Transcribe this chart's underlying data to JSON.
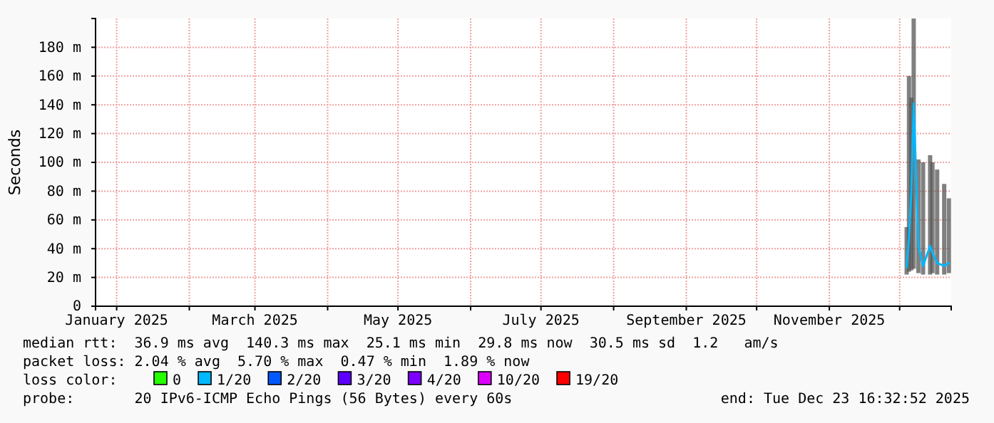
{
  "chart_data": {
    "type": "line",
    "ylabel": "Seconds",
    "xlim": [
      "2024-12-23",
      "2025-12-23"
    ],
    "xticks": [
      {
        "value": "2025-01-01",
        "label": "January 2025"
      },
      {
        "value": "2025-02-01",
        "label": null
      },
      {
        "value": "2025-03-01",
        "label": "March 2025"
      },
      {
        "value": "2025-04-01",
        "label": null
      },
      {
        "value": "2025-05-01",
        "label": "May 2025"
      },
      {
        "value": "2025-06-01",
        "label": null
      },
      {
        "value": "2025-07-01",
        "label": "July 2025"
      },
      {
        "value": "2025-08-01",
        "label": null
      },
      {
        "value": "2025-09-01",
        "label": "September 2025"
      },
      {
        "value": "2025-10-01",
        "label": null
      },
      {
        "value": "2025-11-01",
        "label": "November 2025"
      },
      {
        "value": "2025-12-01",
        "label": null
      }
    ],
    "ylim": [
      0,
      200
    ],
    "yticks": [
      0,
      {
        "value": 20,
        "label": "20 m"
      },
      {
        "value": 40,
        "label": "40 m"
      },
      {
        "value": 60,
        "label": "60 m"
      },
      {
        "value": 80,
        "label": "80 m"
      },
      {
        "value": 100,
        "label": "100 m"
      },
      {
        "value": 120,
        "label": "120 m"
      },
      {
        "value": 140,
        "label": "140 m"
      },
      {
        "value": 160,
        "label": "160 m"
      },
      {
        "value": 180,
        "label": "180 m"
      }
    ],
    "grid": true,
    "legend": "bottom",
    "legend_title": "loss color:",
    "line_style": "solid",
    "x": [
      "2025-12-04",
      "2025-12-05",
      "2025-12-06",
      "2025-12-07",
      "2025-12-09",
      "2025-12-11",
      "2025-12-14",
      "2025-12-15",
      "2025-12-17",
      "2025-12-20",
      "2025-12-22"
    ],
    "series": [
      {
        "name": "0",
        "color": "#26ff00",
        "values": [
          null,
          null,
          null,
          null,
          null,
          null,
          null,
          null,
          null,
          null,
          null
        ]
      },
      {
        "name": "1/20",
        "color": "#00b8ff",
        "values": [
          27,
          48,
          80,
          141,
          42,
          28,
          42,
          37,
          30,
          28,
          30
        ],
        "lower": [
          22,
          24,
          25,
          26,
          23,
          22,
          22,
          23,
          22,
          22,
          23
        ],
        "upper": [
          55,
          160,
          145,
          200,
          102,
          100,
          105,
          100,
          95,
          85,
          75
        ]
      },
      {
        "name": "2/20",
        "color": "#0059ff",
        "values": [
          null,
          null,
          null,
          null,
          null,
          null,
          null,
          null,
          null,
          null,
          null
        ]
      },
      {
        "name": "3/20",
        "color": "#5e00ff",
        "values": [
          null,
          null,
          null,
          null,
          null,
          null,
          null,
          null,
          null,
          null,
          null
        ]
      },
      {
        "name": "4/20",
        "color": "#7e00ff",
        "values": [
          null,
          null,
          null,
          null,
          null,
          null,
          null,
          null,
          null,
          null,
          null
        ]
      },
      {
        "name": "10/20",
        "color": "#dd00ff",
        "values": [
          null,
          null,
          null,
          null,
          null,
          null,
          null,
          null,
          null,
          null,
          null
        ]
      },
      {
        "name": "19/20",
        "color": "#ff0000",
        "values": [
          null,
          null,
          null,
          null,
          null,
          null,
          null,
          null,
          null,
          null,
          null
        ]
      }
    ],
    "annotations": [
      "median rtt:  36.9 ms avg  140.3 ms max  25.1 ms min  29.8 ms now  30.5 ms sd  1.2   am/s",
      "packet loss: 2.04 % avg  5.70 % max  0.47 % min  1.89 % now",
      "probe:       20 IPv6-ICMP Echo Pings (56 Bytes) every 60s",
      "end: Tue Dec 23 16:32:52 2025"
    ]
  }
}
